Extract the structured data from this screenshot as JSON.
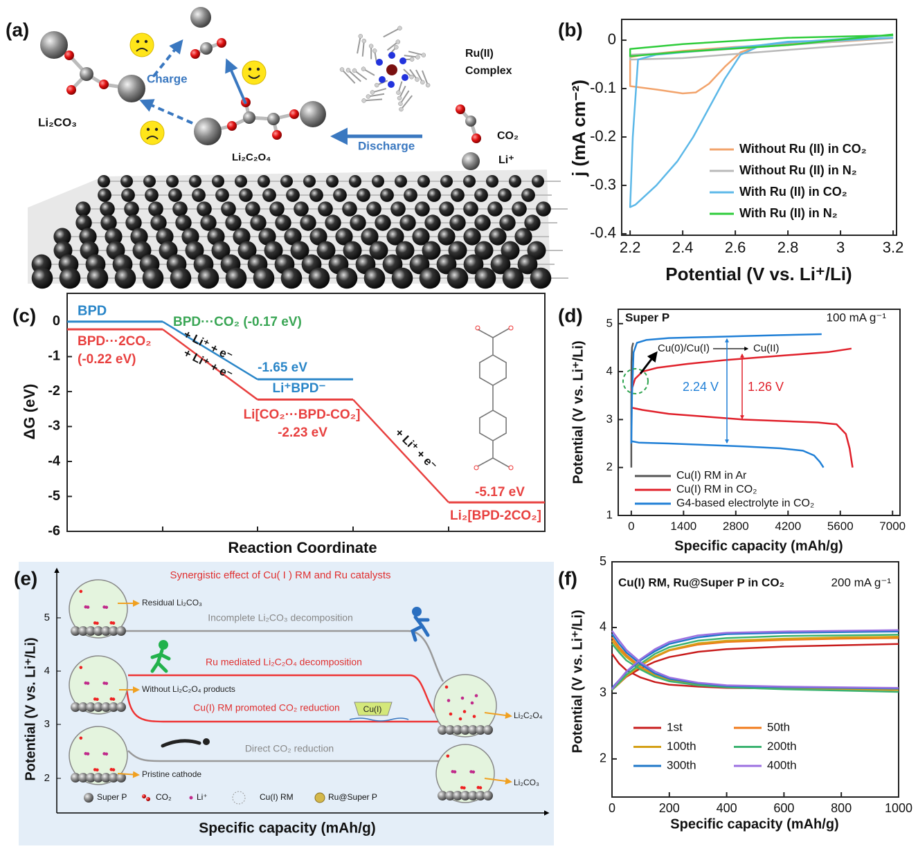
{
  "panel_labels": [
    "(a)",
    "(b)",
    "(c)",
    "(d)",
    "(e)",
    "(f)"
  ],
  "panel_a": {
    "labels": [
      "Li₂CO₃",
      "Charge",
      "Li₂C₂O₄",
      "Discharge",
      "Ru(II)",
      "Complex",
      "CO₂",
      "Li⁺"
    ]
  },
  "chart_data": [
    {
      "type": "line",
      "xlabel": "Potential (V vs. Li⁺/Li)",
      "ylabel": "j (mA cm⁻²)",
      "xlim": [
        2.168,
        3.213
      ],
      "ylim": [
        -0.403,
        0.043
      ],
      "xticks": [
        2.2,
        2.4,
        2.6,
        2.8,
        3,
        3.2
      ],
      "yticks": [
        0,
        -0.1,
        -0.2,
        -0.3,
        -0.4
      ],
      "legend": "lower right",
      "series": [
        {
          "name": "Without Ru (II) in CO₂",
          "color": "#f2a36b",
          "x": [
            3.2,
            3.0,
            2.8,
            2.7,
            2.62,
            2.56,
            2.5,
            2.45,
            2.4,
            2.3,
            2.2,
            2.2,
            2.25,
            2.4,
            2.6,
            2.8,
            3.0,
            3.2
          ],
          "values": [
            0.005,
            0.0,
            -0.004,
            -0.01,
            -0.025,
            -0.055,
            -0.09,
            -0.108,
            -0.11,
            -0.102,
            -0.095,
            -0.035,
            -0.03,
            -0.022,
            -0.014,
            -0.008,
            -0.003,
            0.004
          ]
        },
        {
          "name": "Without Ru (II) in N₂",
          "color": "#b9b9b9",
          "x": [
            3.2,
            2.8,
            2.4,
            2.2,
            2.2,
            2.4,
            2.8,
            3.2
          ],
          "values": [
            0.005,
            -0.01,
            -0.025,
            -0.03,
            -0.04,
            -0.037,
            -0.02,
            -0.004
          ]
        },
        {
          "name": "With Ru (II) in CO₂",
          "color": "#5cb8e8",
          "x": [
            3.2,
            3.0,
            2.8,
            2.7,
            2.62,
            2.56,
            2.5,
            2.44,
            2.38,
            2.3,
            2.22,
            2.2,
            2.21,
            2.23,
            2.3,
            2.5,
            2.8,
            3.2
          ],
          "values": [
            0.005,
            0.0,
            -0.003,
            -0.01,
            -0.03,
            -0.08,
            -0.14,
            -0.2,
            -0.25,
            -0.3,
            -0.34,
            -0.345,
            -0.2,
            -0.04,
            -0.03,
            -0.02,
            -0.005,
            0.01
          ]
        },
        {
          "name": "With Ru (II) in N₂",
          "color": "#2ecc3a",
          "x": [
            3.2,
            2.8,
            2.4,
            2.2,
            2.2,
            2.4,
            2.8,
            3.2
          ],
          "values": [
            0.01,
            0.005,
            -0.008,
            -0.018,
            -0.033,
            -0.024,
            -0.01,
            0.012
          ]
        }
      ]
    },
    {
      "type": "energy",
      "xlabel": "Reaction Coordinate",
      "ylabel": "ΔG (eV)",
      "ylim": [
        -6,
        0.81
      ],
      "yticks": [
        0,
        -1,
        -2,
        -3,
        -4,
        -5,
        -6
      ],
      "series": [
        {
          "color": "#2a86c8",
          "values": [
            0,
            -1.65,
            null
          ]
        },
        {
          "color": "#e8403f",
          "values": [
            -0.22,
            -2.23,
            -5.17
          ]
        }
      ],
      "annotations": [
        {
          "text": "BPD",
          "color": "#2a86c8"
        },
        {
          "text": "BPD···CO₂ (-0.17 eV)",
          "color": "#3aa655"
        },
        {
          "text": "BPD···2CO₂",
          "color": "#e8403f"
        },
        {
          "text": "(-0.22 eV)",
          "color": "#e8403f"
        },
        {
          "text": "+ Li⁺ + e⁻",
          "color": "#111111"
        },
        {
          "text": "+ Li⁺ + e⁻",
          "color": "#111111"
        },
        {
          "text": "-1.65 eV",
          "color": "#2a86c8"
        },
        {
          "text": "Li⁺BPD⁻",
          "color": "#2a86c8"
        },
        {
          "text": "Li[CO₂···BPD-CO₂]",
          "color": "#e8403f"
        },
        {
          "text": "-2.23 eV",
          "color": "#e8403f"
        },
        {
          "text": "+ Li⁺ + e⁻",
          "color": "#111111"
        },
        {
          "text": "-5.17 eV",
          "color": "#e8403f"
        },
        {
          "text": "Li₂[BPD-2CO₂]",
          "color": "#e8403f"
        }
      ]
    },
    {
      "type": "line",
      "title": "Super P",
      "subtitle": "100 mA g⁻¹",
      "xlabel": "Specific capacity (mAh/g)",
      "ylabel": "Potential (V vs. Li⁺/Li)",
      "xlim": [
        -350,
        7200
      ],
      "ylim": [
        1,
        5.3
      ],
      "xticks": [
        0,
        1400,
        2800,
        4200,
        5600,
        7000
      ],
      "yticks": [
        1,
        2,
        3,
        4,
        5
      ],
      "legend": "lower left",
      "series": [
        {
          "name": "Cu(I) RM in Ar",
          "color": "#555555",
          "x": [
            0,
            0,
            5,
            20,
            50
          ],
          "values": [
            2.0,
            3.2,
            4.2,
            4.5,
            4.6
          ]
        },
        {
          "name": "Cu(I) RM in CO₂",
          "color": "#e0202a",
          "x": [
            0,
            100,
            300,
            700,
            1500,
            2500,
            3500,
            4500,
            5300,
            5900,
            null,
            0,
            300,
            1000,
            2000,
            3000,
            4000,
            5000,
            5500,
            5750,
            5850,
            5930
          ],
          "values": [
            3.6,
            3.85,
            4.0,
            4.08,
            4.16,
            4.24,
            4.3,
            4.36,
            4.41,
            4.48,
            null,
            3.25,
            3.2,
            3.12,
            3.06,
            3.0,
            2.97,
            2.94,
            2.9,
            2.7,
            2.4,
            2.0
          ]
        },
        {
          "name": "G4-based electrolyte in CO₂",
          "color": "#1f7fd6",
          "x": [
            0,
            20,
            60,
            150,
            400,
            1000,
            2000,
            3000,
            4000,
            5100,
            null,
            0,
            200,
            1000,
            2000,
            3000,
            4000,
            4600,
            4900,
            5050,
            5150
          ],
          "values": [
            2.5,
            3.5,
            4.4,
            4.6,
            4.66,
            4.7,
            4.72,
            4.74,
            4.76,
            4.78,
            null,
            2.55,
            2.52,
            2.5,
            2.47,
            2.44,
            2.4,
            2.35,
            2.25,
            2.12,
            2.0
          ]
        }
      ],
      "annotations": [
        {
          "text": "Cu(0)/Cu(I)",
          "color": "#111111"
        },
        {
          "text": "Cu(II)",
          "color": "#111111"
        },
        {
          "text": "2.24 V",
          "color": "#1f7fd6"
        },
        {
          "text": "1.26 V",
          "color": "#e0202a"
        }
      ]
    },
    {
      "type": "line",
      "title": "Cu(I) RM, Ru@Super P in CO₂",
      "subtitle": "200 mA g⁻¹",
      "xlabel": "Specific capacity (mAh/g)",
      "ylabel": "Potential (V vs. Li⁺/Li)",
      "xlim": [
        0,
        1000
      ],
      "ylim": [
        1.42,
        5
      ],
      "xticks": [
        0,
        200,
        400,
        600,
        800,
        1000
      ],
      "yticks": [
        2,
        3,
        4,
        5
      ],
      "legend": "lower left",
      "series": [
        {
          "name": "1st",
          "color": "#c81c1c",
          "x": [
            0,
            25,
            50,
            100,
            150,
            200,
            300,
            400,
            600,
            800,
            1000,
            null,
            0,
            25,
            50,
            100,
            150,
            200,
            300,
            400,
            600,
            800,
            1000
          ],
          "values": [
            3.6,
            3.45,
            3.35,
            3.24,
            3.17,
            3.13,
            3.1,
            3.08,
            3.07,
            3.06,
            3.05,
            null,
            3.05,
            3.15,
            3.25,
            3.38,
            3.48,
            3.55,
            3.63,
            3.67,
            3.71,
            3.73,
            3.75
          ]
        },
        {
          "name": "50th",
          "color": "#f07a1a",
          "x": [
            0,
            25,
            50,
            100,
            150,
            200,
            300,
            400,
            600,
            800,
            1000,
            null,
            0,
            25,
            50,
            100,
            150,
            200,
            300,
            400,
            600,
            800,
            1000
          ],
          "values": [
            3.85,
            3.7,
            3.58,
            3.4,
            3.28,
            3.2,
            3.14,
            3.11,
            3.09,
            3.07,
            3.06,
            null,
            3.05,
            3.15,
            3.26,
            3.42,
            3.55,
            3.65,
            3.74,
            3.78,
            3.81,
            3.83,
            3.84
          ]
        },
        {
          "name": "100th",
          "color": "#d4a017",
          "x": [
            0,
            25,
            50,
            100,
            150,
            200,
            300,
            400,
            600,
            800,
            1000,
            null,
            0,
            25,
            50,
            100,
            150,
            200,
            300,
            400,
            600,
            800,
            1000
          ],
          "values": [
            3.8,
            3.66,
            3.55,
            3.38,
            3.27,
            3.19,
            3.13,
            3.1,
            3.08,
            3.06,
            3.05,
            null,
            3.05,
            3.15,
            3.26,
            3.42,
            3.56,
            3.66,
            3.76,
            3.8,
            3.83,
            3.85,
            3.86
          ]
        },
        {
          "name": "200th",
          "color": "#3cb371",
          "x": [
            0,
            25,
            50,
            100,
            150,
            200,
            300,
            400,
            600,
            800,
            1000,
            null,
            0,
            25,
            50,
            100,
            150,
            200,
            300,
            400,
            600,
            800,
            1000
          ],
          "values": [
            3.75,
            3.62,
            3.5,
            3.36,
            3.25,
            3.18,
            3.12,
            3.09,
            3.06,
            3.04,
            3.02,
            null,
            3.05,
            3.16,
            3.28,
            3.45,
            3.6,
            3.7,
            3.8,
            3.84,
            3.87,
            3.88,
            3.89
          ]
        },
        {
          "name": "300th",
          "color": "#1f77c8",
          "x": [
            0,
            25,
            50,
            100,
            150,
            200,
            300,
            400,
            600,
            800,
            1000,
            null,
            0,
            25,
            50,
            100,
            150,
            200,
            300,
            400,
            600,
            800,
            1000
          ],
          "values": [
            3.9,
            3.75,
            3.62,
            3.44,
            3.3,
            3.22,
            3.15,
            3.11,
            3.09,
            3.08,
            3.07,
            null,
            3.08,
            3.2,
            3.32,
            3.5,
            3.64,
            3.75,
            3.85,
            3.9,
            3.92,
            3.93,
            3.94
          ]
        },
        {
          "name": "400th",
          "color": "#9b6fe0",
          "x": [
            0,
            25,
            50,
            100,
            150,
            200,
            300,
            400,
            600,
            800,
            1000,
            null,
            0,
            25,
            50,
            100,
            150,
            200,
            300,
            400,
            600,
            800,
            1000
          ],
          "values": [
            3.95,
            3.8,
            3.66,
            3.47,
            3.33,
            3.24,
            3.16,
            3.12,
            3.1,
            3.09,
            3.08,
            null,
            3.06,
            3.2,
            3.33,
            3.52,
            3.67,
            3.78,
            3.88,
            3.92,
            3.94,
            3.95,
            3.96
          ]
        }
      ]
    }
  ],
  "panel_e": {
    "title": "Synergistic effect of Cu( I ) RM and Ru catalysts",
    "labels": [
      "Residual Li₂CO₃",
      "Incomplete Li₂CO₃ decomposition",
      "Ru mediated Li₂C₂O₄ decomposition",
      "Without Li₂C₂O₄ products",
      "Cu(I) RM promoted CO₂ reduction",
      "Cu(I)",
      "Li₂C₂O₄",
      "Direct CO₂ reduction",
      "Pristine cathode",
      "Li₂CO₃"
    ],
    "legend": [
      "Super P",
      "CO₂",
      "Li⁺",
      "Cu(I) RM",
      "Ru@Super P"
    ],
    "yticks": [
      "5",
      "4",
      "3",
      "2"
    ],
    "xlabel": "Specific capacity (mAh/g)",
    "ylabel": "Potential (V vs. Li⁺/Li)"
  }
}
